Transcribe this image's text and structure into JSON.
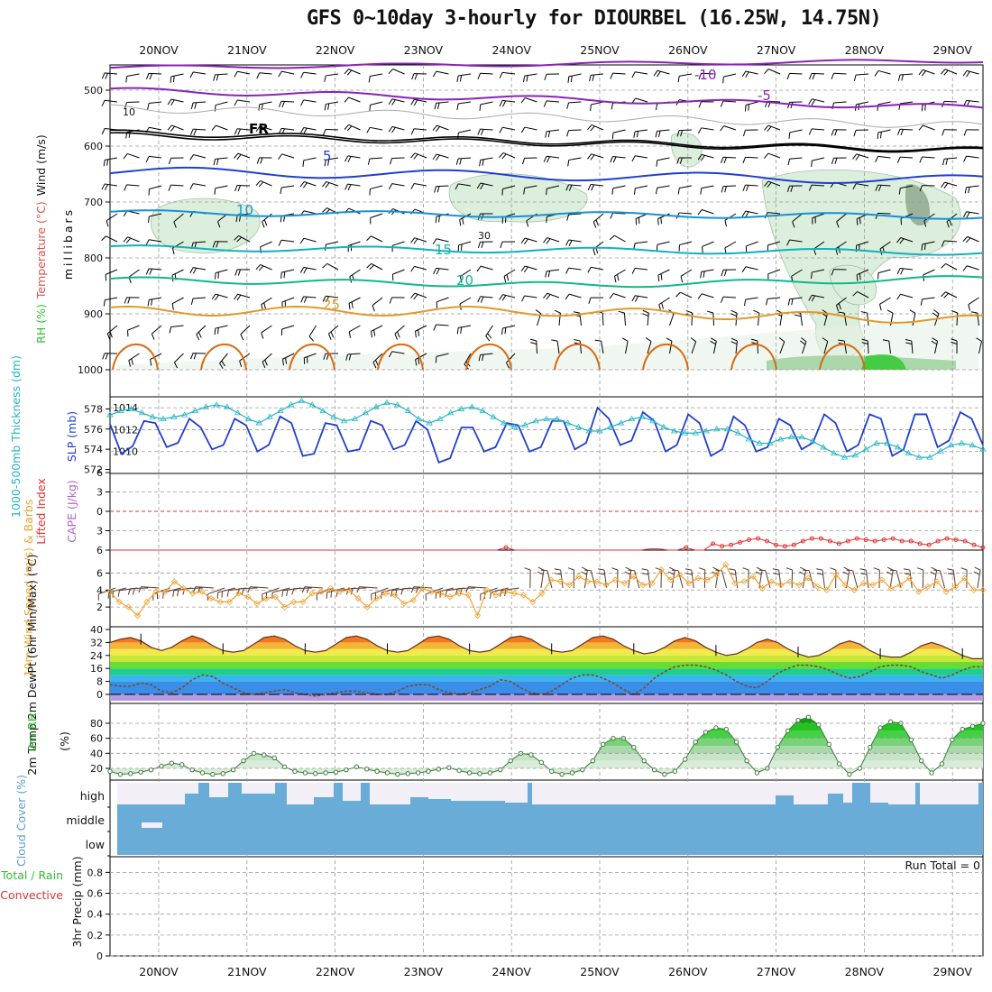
{
  "title": "GFS 0~10day 3-hourly for DIOURBEL (16.25W, 14.75N)",
  "dates": [
    "20NOV",
    "21NOV",
    "22NOV",
    "23NOV",
    "24NOV",
    "25NOV",
    "26NOV",
    "27NOV",
    "28NOV",
    "29NOV"
  ],
  "run_total_label": "Run Total = 0",
  "colors": {
    "grid": "#999999",
    "purple": "#8a22b8",
    "blue": "#1f3fd0",
    "cyan": "#17a6c8",
    "teal": "#10b79a",
    "orange": "#e09a2a",
    "darkorange": "#d86a10",
    "rh": "#c9e2c9",
    "slp": "#1f3fd0",
    "thick": "#22b4c4",
    "lifted": "#e03030",
    "wind10": "#f0a030",
    "temp": "#e04020",
    "rh2m": "#22bb22",
    "cloud": "#6aacd8"
  },
  "chart_data": [
    {
      "type": "contour",
      "panel": "upper-air",
      "ylabel_parts": [
        "RH (%)",
        "Temperature (°C)",
        "Wind (m/s)"
      ],
      "ylabel2": "millibars",
      "yticks": [
        500,
        600,
        700,
        800,
        900,
        1000
      ],
      "contour_labels": [
        {
          "text": "-10",
          "color": "purple"
        },
        {
          "text": "-5",
          "color": "purple"
        },
        {
          "text": "FR",
          "color": "black"
        },
        {
          "text": "5",
          "color": "blue"
        },
        {
          "text": "10",
          "color": "cyan"
        },
        {
          "text": "15",
          "color": "teal"
        },
        {
          "text": "20",
          "color": "teal"
        },
        {
          "text": "25",
          "color": "orange"
        },
        {
          "text": "10",
          "color": "gray"
        },
        {
          "text": "30",
          "color": "gray"
        }
      ]
    },
    {
      "type": "line",
      "panel": "slp-thickness",
      "ylabel_left": "1000-500mb Thickness (dm)",
      "ylabel_right": "SLP (mb)",
      "yticks_left": [
        572,
        574,
        576,
        578
      ],
      "yticks_right": [
        1010,
        1012,
        1014
      ],
      "slp": [
        1012.5,
        1009.8,
        1010.5,
        1012.8,
        1012.6,
        1010.4,
        1010.8,
        1013.0,
        1012.2,
        1010.2,
        1010.6,
        1013.0,
        1012.4,
        1010.0,
        1010.6,
        1013.2,
        1012.6,
        1009.6,
        1009.8,
        1012.6,
        1012.4,
        1010.0,
        1010.2,
        1012.8,
        1012.4,
        1010.2,
        1010.6,
        1012.8,
        1012.0,
        1009.0,
        1009.4,
        1012.2,
        1012.2,
        1010.0,
        1010.4,
        1012.6,
        1012.4,
        1010.0,
        1010.4,
        1012.8,
        1012.8,
        1010.2,
        1010.8,
        1014.0,
        1013.0,
        1010.6,
        1011.0,
        1013.6,
        1012.8,
        1010.0,
        1010.6,
        1013.4,
        1012.6,
        1009.6,
        1010.2,
        1013.2,
        1012.4,
        1010.0,
        1010.4,
        1013.0,
        1012.4,
        1010.2,
        1010.8,
        1013.4,
        1012.6,
        1010.0,
        1010.6,
        1013.4,
        1013.0,
        1009.6,
        1010.2,
        1013.4,
        1013.4,
        1010.4,
        1011.0,
        1013.6,
        1013.0,
        1010.6
      ],
      "thickness": [
        577.4,
        577.8,
        578.0,
        577.6,
        577.2,
        577.0,
        577.2,
        577.4,
        577.8,
        578.2,
        578.4,
        578.2,
        577.6,
        577.0,
        576.6,
        577.2,
        577.8,
        578.4,
        578.8,
        578.4,
        577.8,
        577.2,
        576.8,
        577.0,
        577.6,
        578.2,
        578.6,
        578.4,
        577.8,
        577.0,
        576.6,
        577.0,
        577.6,
        578.0,
        578.2,
        577.8,
        577.2,
        576.6,
        576.2,
        576.4,
        576.8,
        577.0,
        577.0,
        576.6,
        576.2,
        575.8,
        575.8,
        576.2,
        576.6,
        577.0,
        577.2,
        576.8,
        576.2,
        575.8,
        575.6,
        575.6,
        575.8,
        576.0,
        576.0,
        575.6,
        575.0,
        574.6,
        574.6,
        575.0,
        575.2,
        575.2,
        574.8,
        574.2,
        573.6,
        573.2,
        573.4,
        574.0,
        574.6,
        574.6,
        574.2,
        573.6,
        573.2,
        573.2,
        573.8,
        574.4,
        574.6,
        574.4,
        574.0
      ]
    },
    {
      "type": "line",
      "panel": "stability",
      "ylabel_left": "Lifted Index",
      "ylabel_right": "CAPE (J/kg)",
      "yticks": [
        6,
        3,
        0,
        -3,
        -6
      ],
      "lifted": [
        6,
        6,
        6,
        6,
        6,
        6,
        6,
        6,
        6,
        6,
        6,
        6,
        6,
        6,
        6,
        6,
        6,
        6,
        6,
        6,
        6,
        6,
        6,
        6,
        6,
        6,
        6,
        6,
        6,
        6,
        6,
        6,
        6,
        6,
        6,
        6,
        6,
        6,
        6,
        6,
        6,
        6,
        6,
        6,
        5.6,
        6,
        6,
        6,
        6,
        6,
        6,
        6,
        6,
        6,
        6,
        6,
        6,
        6,
        6,
        6,
        5.8,
        5.8,
        6,
        6,
        5.6,
        6,
        6,
        5.0,
        5.4,
        5.2,
        4.8,
        4.4,
        4.2,
        4.6,
        5.2,
        5.4,
        5.2,
        4.6,
        4.2,
        4.2,
        4.6,
        5.0,
        4.6,
        4.2,
        4.4,
        4.6,
        4.4,
        4.2,
        4.6,
        4.6,
        5.0,
        5.2,
        4.6,
        4.2,
        4.4,
        4.6,
        5.2,
        5.6
      ]
    },
    {
      "type": "line",
      "panel": "wind10m",
      "ylabel": "10m Wind Speed (m/s) & Barbs",
      "yticks": [
        2,
        4,
        6
      ],
      "speed": [
        3.8,
        2.6,
        2.0,
        1.0,
        2.6,
        3.8,
        3.8,
        5.0,
        4.2,
        3.6,
        3.8,
        3.0,
        2.6,
        2.6,
        3.6,
        3.2,
        2.4,
        3.0,
        3.2,
        2.0,
        2.6,
        2.6,
        3.6,
        3.8,
        4.2,
        3.8,
        4.0,
        3.0,
        2.0,
        3.0,
        3.6,
        3.4,
        2.4,
        2.8,
        4.2,
        3.8,
        3.6,
        3.2,
        3.6,
        3.4,
        1.0,
        4.0,
        3.4,
        3.8,
        3.6,
        3.4,
        2.6,
        3.6,
        5.2,
        5.0,
        4.6,
        5.6,
        5.0,
        5.0,
        4.6,
        5.2,
        4.8,
        5.6,
        4.6,
        4.8,
        6.4,
        5.2,
        5.8,
        4.8,
        5.4,
        5.2,
        5.8,
        7.0,
        4.8,
        5.0,
        5.6,
        4.2,
        5.0,
        4.6,
        5.0,
        4.6,
        5.4,
        4.4,
        4.0,
        5.8,
        4.6,
        4.0,
        4.8,
        4.6,
        5.2,
        4.2,
        4.6,
        5.4,
        3.8,
        4.4,
        5.0,
        3.8,
        4.4,
        5.4,
        4.0,
        4.0
      ]
    },
    {
      "type": "area",
      "panel": "temp-dewpt",
      "ylabel": "2m Temp 2m DewPt (6hr Min/Max) (°C)",
      "yticks": [
        0,
        8,
        16,
        24,
        32,
        40
      ],
      "temp": [
        32,
        34,
        35,
        33,
        29,
        27,
        29,
        33,
        36,
        34,
        30,
        27,
        26,
        27,
        31,
        35,
        36,
        34,
        30,
        27,
        26,
        27,
        31,
        35,
        36,
        34,
        30,
        27,
        26,
        27,
        31,
        35,
        36,
        34,
        30,
        27,
        26,
        27,
        31,
        35,
        36,
        34,
        30,
        27,
        26,
        27,
        31,
        35,
        36,
        34,
        30,
        27,
        25,
        26,
        29,
        33,
        35,
        33,
        29,
        26,
        24,
        25,
        28,
        32,
        34,
        32,
        28,
        25,
        23,
        24,
        27,
        31,
        33,
        31,
        27,
        24,
        23,
        23,
        26,
        30,
        32,
        30,
        27,
        24,
        22,
        22
      ],
      "dewpt": [
        6,
        5,
        5,
        7,
        6,
        2,
        1,
        4,
        9,
        12,
        11,
        7,
        4,
        1,
        0,
        1,
        2,
        3,
        1,
        0,
        -1,
        0,
        1,
        2,
        2,
        1,
        0,
        0,
        2,
        5,
        6,
        6,
        3,
        1,
        0,
        1,
        3,
        5,
        9,
        8,
        4,
        1,
        0,
        2,
        6,
        10,
        12,
        12,
        10,
        7,
        3,
        0,
        4,
        10,
        14,
        17,
        18,
        18,
        17,
        15,
        12,
        8,
        5,
        4,
        8,
        13,
        16,
        18,
        18,
        17,
        15,
        12,
        10,
        11,
        14,
        17,
        18,
        18,
        17,
        14,
        12,
        10,
        12,
        15,
        17,
        17
      ]
    },
    {
      "type": "area",
      "panel": "rh2m",
      "ylabel": "2m RH (%)",
      "yticks": [
        20,
        40,
        60,
        80
      ],
      "rh": [
        16,
        12,
        13,
        15,
        18,
        23,
        27,
        25,
        18,
        14,
        12,
        13,
        18,
        30,
        40,
        38,
        34,
        22,
        16,
        14,
        13,
        14,
        15,
        18,
        22,
        19,
        16,
        14,
        12,
        13,
        14,
        16,
        19,
        21,
        17,
        14,
        13,
        14,
        18,
        30,
        40,
        38,
        28,
        16,
        12,
        14,
        18,
        30,
        52,
        60,
        60,
        48,
        30,
        18,
        12,
        16,
        32,
        55,
        68,
        74,
        72,
        55,
        30,
        14,
        20,
        48,
        70,
        84,
        88,
        78,
        52,
        26,
        12,
        20,
        48,
        74,
        82,
        80,
        58,
        30,
        14,
        26,
        58,
        72,
        76,
        80
      ]
    },
    {
      "type": "table",
      "panel": "cloud-cover",
      "ylabel": "Cloud Cover (%)",
      "levels": [
        "high",
        "middle",
        "low"
      ]
    },
    {
      "type": "bar",
      "panel": "precip",
      "ylabel_parts": [
        "Total / Rain",
        "Convective"
      ],
      "ylabel2": "3hr Precip (mm)",
      "yticks": [
        0,
        0.2,
        0.4,
        0.6,
        0.8
      ],
      "values": []
    }
  ]
}
